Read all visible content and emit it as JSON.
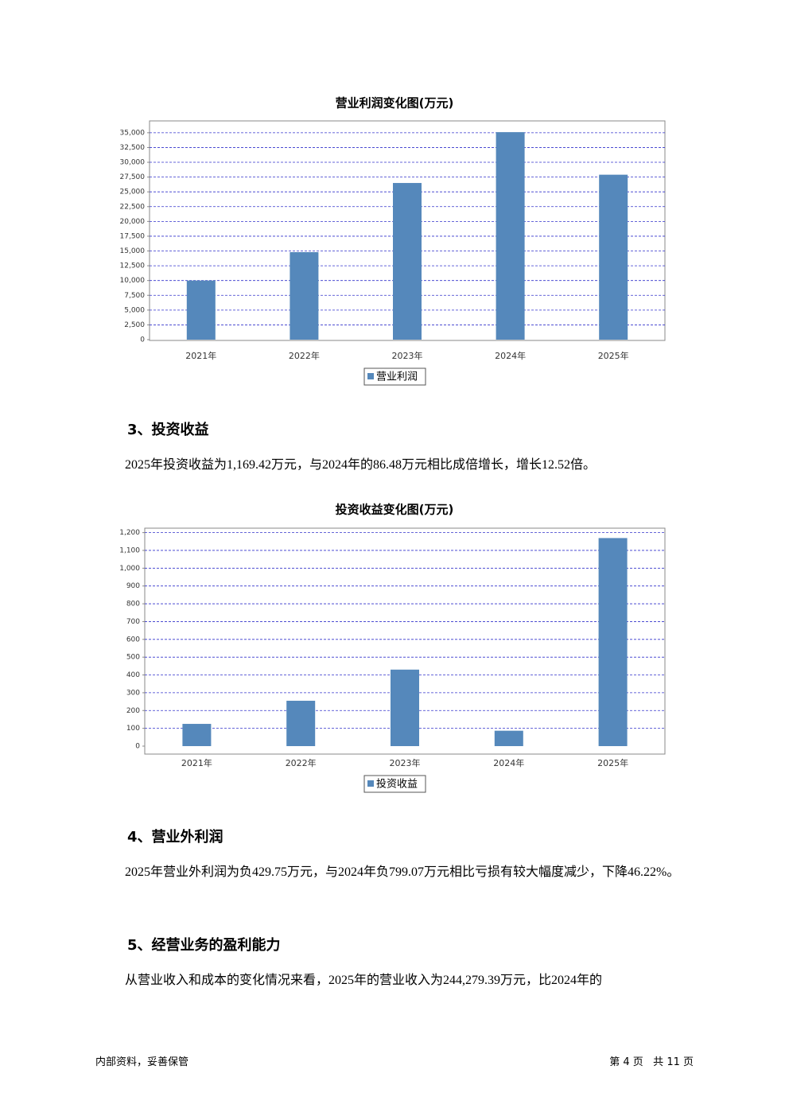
{
  "chart_data": [
    {
      "type": "bar",
      "title": "营业利润变化图(万元)",
      "categories": [
        "2021年",
        "2022年",
        "2023年",
        "2024年",
        "2025年"
      ],
      "series": [
        {
          "name": "营业利润",
          "color": "#5588bb",
          "values": [
            10000,
            14800,
            26500,
            35100,
            27900
          ]
        }
      ],
      "ylim": [
        0,
        37000
      ],
      "yticks": [
        0,
        {
          "value": 2500,
          "label": "2,500"
        },
        {
          "value": 5000,
          "label": "5,000"
        },
        {
          "value": 7500,
          "label": "7,500"
        },
        {
          "value": 10000,
          "label": "10,000"
        },
        {
          "value": 12500,
          "label": "12,500"
        },
        {
          "value": 15000,
          "label": "15,000"
        },
        {
          "value": 17500,
          "label": "17,500"
        },
        {
          "value": 20000,
          "label": "20,000"
        },
        {
          "value": 22500,
          "label": "22,500"
        },
        {
          "value": 25000,
          "label": "25,000"
        },
        {
          "value": 27500,
          "label": "27,500"
        },
        {
          "value": 30000,
          "label": "30,000"
        },
        {
          "value": 32500,
          "label": "32,500"
        },
        {
          "value": 35000,
          "label": "35,000"
        }
      ],
      "grid": true,
      "legend": "bottom"
    },
    {
      "type": "bar",
      "title": "投资收益变化图(万元)",
      "categories": [
        "2021年",
        "2022年",
        "2023年",
        "2024年",
        "2025年"
      ],
      "series": [
        {
          "name": "投资收益",
          "color": "#5588bb",
          "values": [
            125,
            255,
            430,
            86.48,
            1169.42
          ]
        }
      ],
      "ylim": [
        0,
        1225
      ],
      "yticks": [
        0,
        100,
        200,
        300,
        400,
        500,
        600,
        700,
        800,
        900,
        {
          "value": 1000,
          "label": "1,000"
        },
        {
          "value": 1100,
          "label": "1,100"
        },
        {
          "value": 1200,
          "label": "1,200"
        }
      ],
      "grid": true,
      "legend": "bottom"
    }
  ],
  "sections": [
    {
      "heading": "3、投资收益",
      "text": "2025年投资收益为1,169.42万元，与2024年的86.48万元相比成倍增长，增长12.52倍。"
    },
    {
      "heading": "4、营业外利润",
      "text": "2025年营业外利润为负429.75万元，与2024年负799.07万元相比亏损有较大幅度减少，下降46.22%。"
    },
    {
      "heading": "5、经营业务的盈利能力",
      "text": "从营业收入和成本的变化情况来看，2025年的营业收入为244,279.39万元，比2024年的"
    }
  ],
  "footer": {
    "left": "内部资料，妥善保管",
    "right": "第 4 页   共 11 页"
  }
}
